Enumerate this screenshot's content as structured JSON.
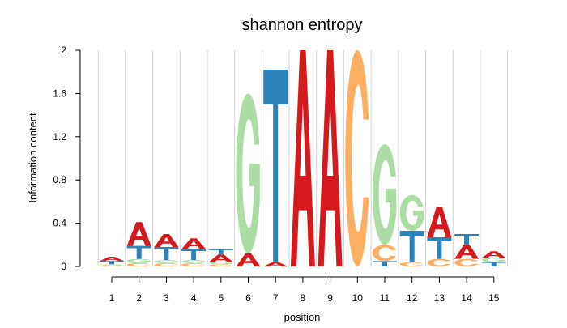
{
  "chart_data": {
    "type": "sequence-logo",
    "title": "shannon entropy",
    "xlabel": "position",
    "ylabel": "Information content",
    "ylim": [
      0,
      2
    ],
    "yticks": [
      "0",
      "0.4",
      "0.8",
      "1.2",
      "1.6",
      "2"
    ],
    "positions": [
      1,
      2,
      3,
      4,
      5,
      6,
      7,
      8,
      9,
      10,
      11,
      12,
      13,
      14,
      15
    ],
    "grid": "vertical",
    "colors": {
      "A": "#d7191c",
      "C": "#fdae61",
      "G": "#abdda4",
      "T": "#2b83ba"
    },
    "stacks": [
      [
        {
          "l": "C",
          "h": 0.01
        },
        {
          "l": "G",
          "h": 0.01
        },
        {
          "l": "T",
          "h": 0.03
        },
        {
          "l": "A",
          "h": 0.04
        }
      ],
      [
        {
          "l": "C",
          "h": 0.03
        },
        {
          "l": "G",
          "h": 0.04
        },
        {
          "l": "T",
          "h": 0.12
        },
        {
          "l": "A",
          "h": 0.22
        }
      ],
      [
        {
          "l": "C",
          "h": 0.03
        },
        {
          "l": "G",
          "h": 0.03
        },
        {
          "l": "T",
          "h": 0.12
        },
        {
          "l": "A",
          "h": 0.12
        }
      ],
      [
        {
          "l": "C",
          "h": 0.03
        },
        {
          "l": "G",
          "h": 0.03
        },
        {
          "l": "T",
          "h": 0.1
        },
        {
          "l": "A",
          "h": 0.1
        }
      ],
      [
        {
          "l": "C",
          "h": 0.02
        },
        {
          "l": "G",
          "h": 0.02
        },
        {
          "l": "A",
          "h": 0.07
        },
        {
          "l": "T",
          "h": 0.05
        }
      ],
      [
        {
          "l": "A",
          "h": 0.12
        },
        {
          "l": "G",
          "h": 1.48
        }
      ],
      [
        {
          "l": "A",
          "h": 0.04
        },
        {
          "l": "T",
          "h": 1.78
        }
      ],
      [
        {
          "l": "A",
          "h": 2.0
        }
      ],
      [
        {
          "l": "A",
          "h": 2.0
        }
      ],
      [
        {
          "l": "C",
          "h": 2.0
        }
      ],
      [
        {
          "l": "T",
          "h": 0.05
        },
        {
          "l": "C",
          "h": 0.15
        },
        {
          "l": "G",
          "h": 0.93
        }
      ],
      [
        {
          "l": "C",
          "h": 0.04
        },
        {
          "l": "T",
          "h": 0.29
        },
        {
          "l": "G",
          "h": 0.33
        }
      ],
      [
        {
          "l": "C",
          "h": 0.07
        },
        {
          "l": "T",
          "h": 0.2
        },
        {
          "l": "A",
          "h": 0.28
        }
      ],
      [
        {
          "l": "C",
          "h": 0.07
        },
        {
          "l": "A",
          "h": 0.13
        },
        {
          "l": "T",
          "h": 0.1
        }
      ],
      [
        {
          "l": "T",
          "h": 0.04
        },
        {
          "l": "G",
          "h": 0.04
        },
        {
          "l": "A",
          "h": 0.06
        }
      ]
    ]
  }
}
